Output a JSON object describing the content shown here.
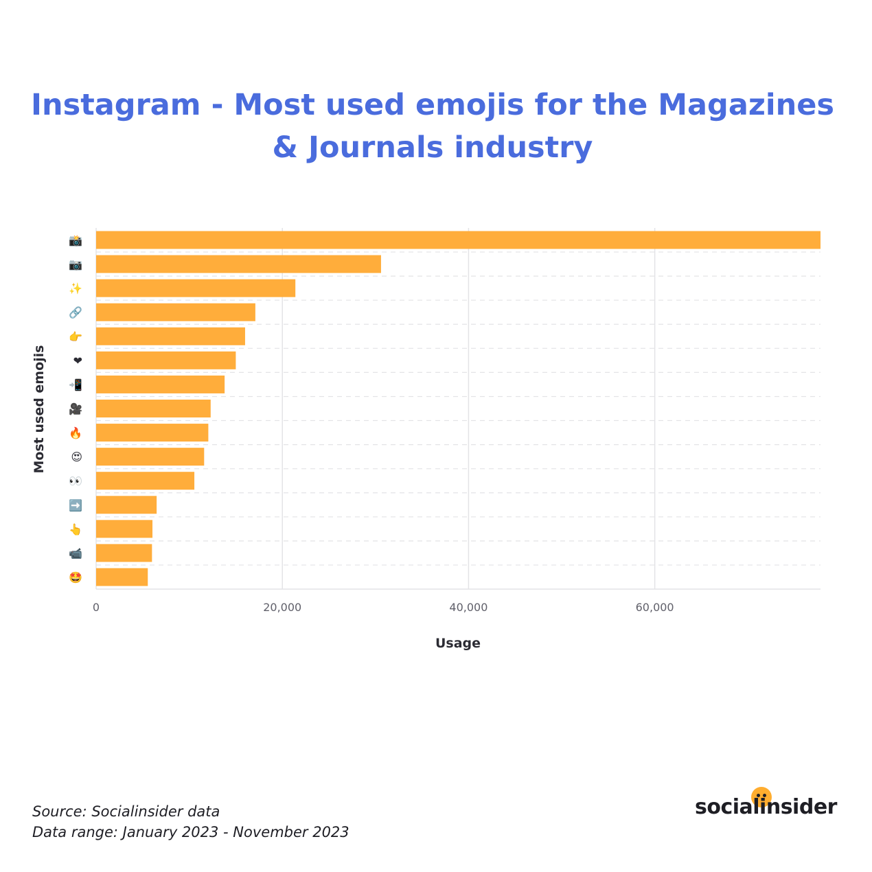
{
  "title": "Instagram - Most used emojis for the Magazines & Journals industry",
  "colors": {
    "title": "#4a6cdd",
    "bar": "#ffad3b",
    "grid": "#e3e3e6",
    "axis_text": "#60606a",
    "label_text": "#2b2b33",
    "brand_dot": "#ffad2f"
  },
  "chart_data": {
    "type": "bar",
    "orientation": "horizontal",
    "categories": [
      "📸",
      "📷",
      "✨",
      "🔗",
      "👉",
      "❤",
      "📲",
      "🎥",
      "🔥",
      "😍",
      "👀",
      "➡️",
      "👆",
      "📹",
      "🤩"
    ],
    "values": [
      77800,
      30600,
      21400,
      17100,
      16000,
      15000,
      13800,
      12300,
      12050,
      11600,
      10550,
      6500,
      6050,
      6000,
      5550
    ],
    "xlabel": "Usage",
    "ylabel": "Most used emojis",
    "xlim": [
      0,
      77800
    ],
    "xticks": [
      0,
      20000,
      40000,
      60000
    ],
    "xtick_labels": [
      "0",
      "20,000",
      "40,000",
      "60,000"
    ],
    "grid": true
  },
  "footer": {
    "source": "Source: Socialinsider data",
    "range": "Data range: January 2023 - November 2023"
  },
  "brand": {
    "name": "socialinsider"
  }
}
